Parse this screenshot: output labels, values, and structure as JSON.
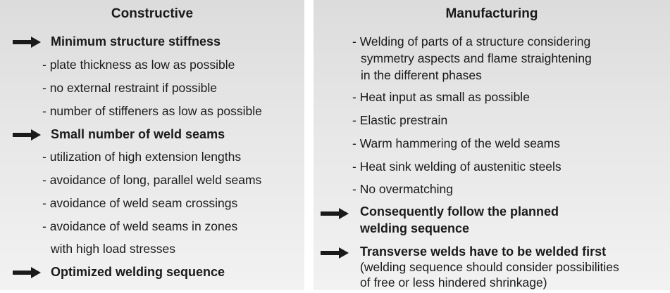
{
  "constructive": {
    "title": "Constructive",
    "heading1": "Minimum structure stiffness",
    "items1": [
      "- plate thickness as low as possible",
      "- no external restraint if possible",
      "- number of stiffeners as low as possible"
    ],
    "heading2": "Small number of weld seams",
    "items2": [
      "- utilization of high extension lengths",
      "- avoidance of long, parallel weld seams",
      "- avoidance of weld seam crossings",
      "- avoidance of weld seams in zones",
      "with high load stresses"
    ],
    "heading3": "Optimized welding sequence"
  },
  "manufacturing": {
    "title": "Manufacturing",
    "item_welding": [
      "- Welding of parts of a structure considering",
      "symmetry aspects and flame straightening",
      "in the different phases"
    ],
    "items": [
      "- Heat input as small as possible",
      "- Elastic prestrain",
      "- Warm hammering of the weld seams",
      "- Heat sink welding of austenitic steels",
      "- No overmatching"
    ],
    "heading1": [
      "Consequently follow the planned",
      "welding sequence"
    ],
    "heading2": "Transverse welds have to be welded first",
    "note": [
      "(welding sequence should consider possibilities",
      "of free or less hindered shrinkage)"
    ]
  }
}
